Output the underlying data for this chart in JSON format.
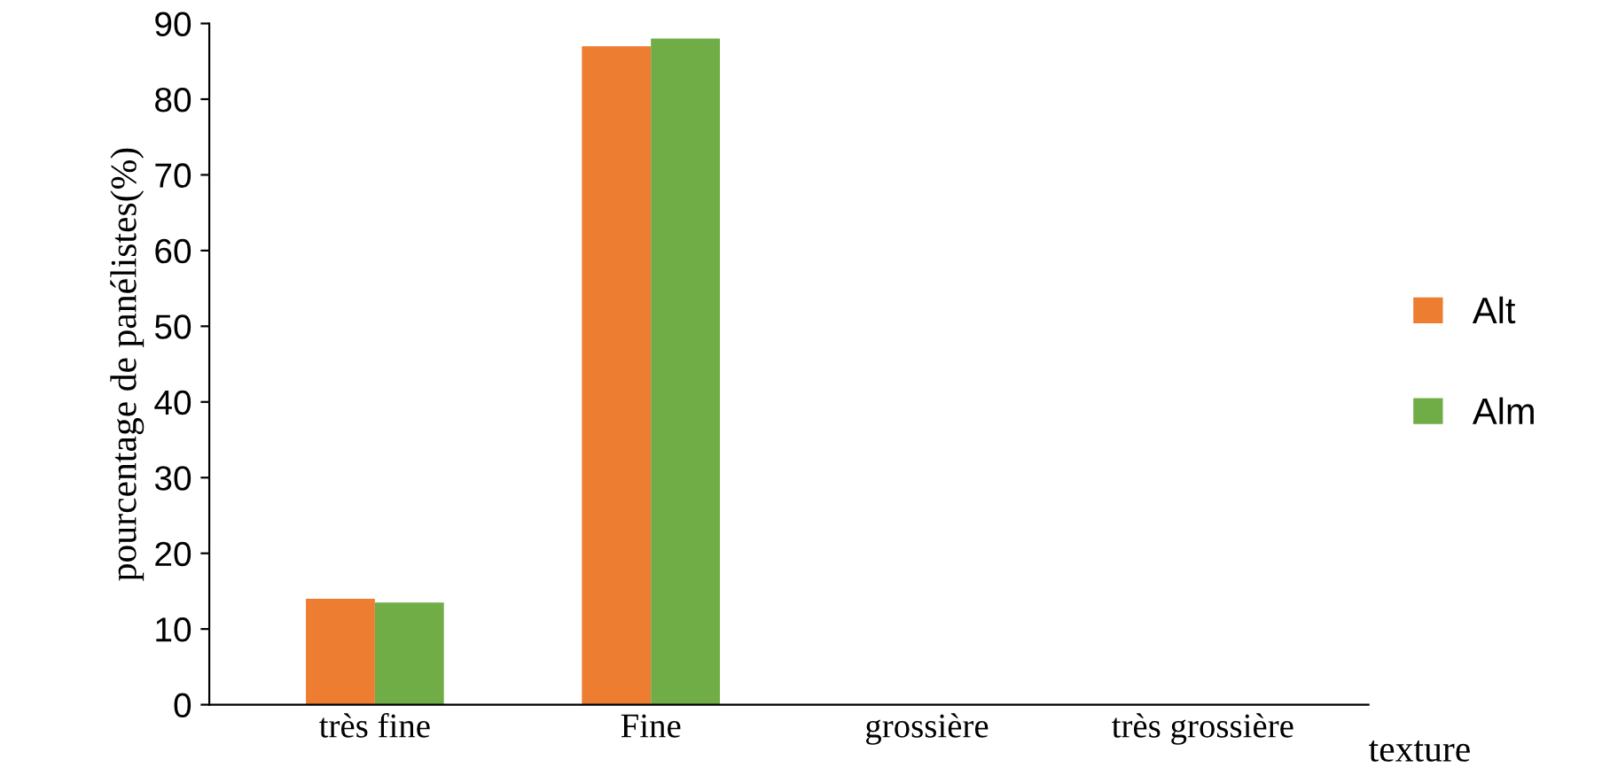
{
  "chart_data": {
    "type": "bar",
    "xlabel": "texture",
    "ylabel": "pourcentage de panélistes(%)",
    "categories": [
      "très fine",
      "Fine",
      "grossière",
      "très grossière"
    ],
    "series": [
      {
        "name": "Alt",
        "color": "#ed7d31",
        "values": [
          14,
          87,
          0,
          0
        ]
      },
      {
        "name": "Alm",
        "color": "#70ad47",
        "values": [
          13.5,
          88,
          0,
          0
        ]
      }
    ],
    "ylim": [
      0,
      90
    ],
    "yticks": [
      0,
      10,
      20,
      30,
      40,
      50,
      60,
      70,
      80,
      90
    ],
    "grid": false,
    "legend": "right"
  }
}
